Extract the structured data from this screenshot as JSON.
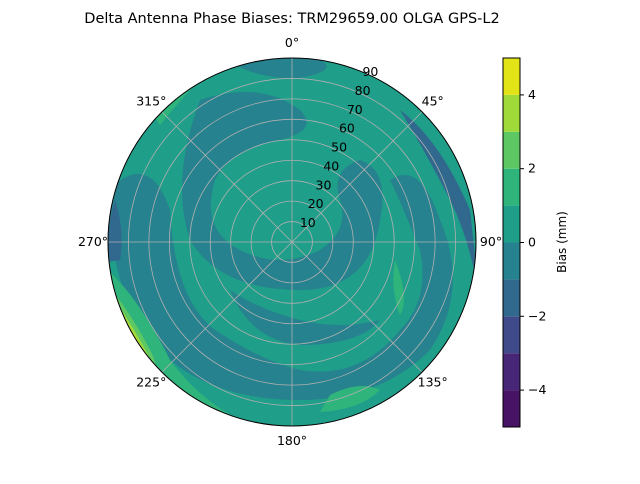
{
  "chart_data": {
    "type": "contour",
    "projection": "polar",
    "title": "Delta Antenna Phase Biases: TRM29659.00     OLGA GPS-L2",
    "theta_zero": "north",
    "theta_direction": "clockwise",
    "theta_ticks": [
      "0°",
      "45°",
      "90°",
      "135°",
      "180°",
      "225°",
      "270°",
      "315°"
    ],
    "r_ticks": [
      "10",
      "20",
      "30",
      "40",
      "50",
      "60",
      "70",
      "80",
      "90"
    ],
    "r_range": [
      0,
      90
    ],
    "grid": true,
    "colormap": "viridis",
    "levels": [
      -5,
      -4,
      -3,
      -2,
      -1,
      0,
      1,
      2,
      3,
      4,
      5
    ],
    "level_colors": [
      "#471365",
      "#482677",
      "#3e4a89",
      "#31688e",
      "#26828e",
      "#1f9e89",
      "#2fb47c",
      "#5dc863",
      "#a0da39",
      "#e2e418"
    ],
    "colorbar": {
      "label": "Bias (mm)",
      "ticks": [
        "−4",
        "−2",
        "0",
        "2",
        "4"
      ],
      "tick_values": [
        -4,
        -2,
        0,
        2,
        4
      ],
      "range": [
        -5,
        5
      ]
    }
  }
}
